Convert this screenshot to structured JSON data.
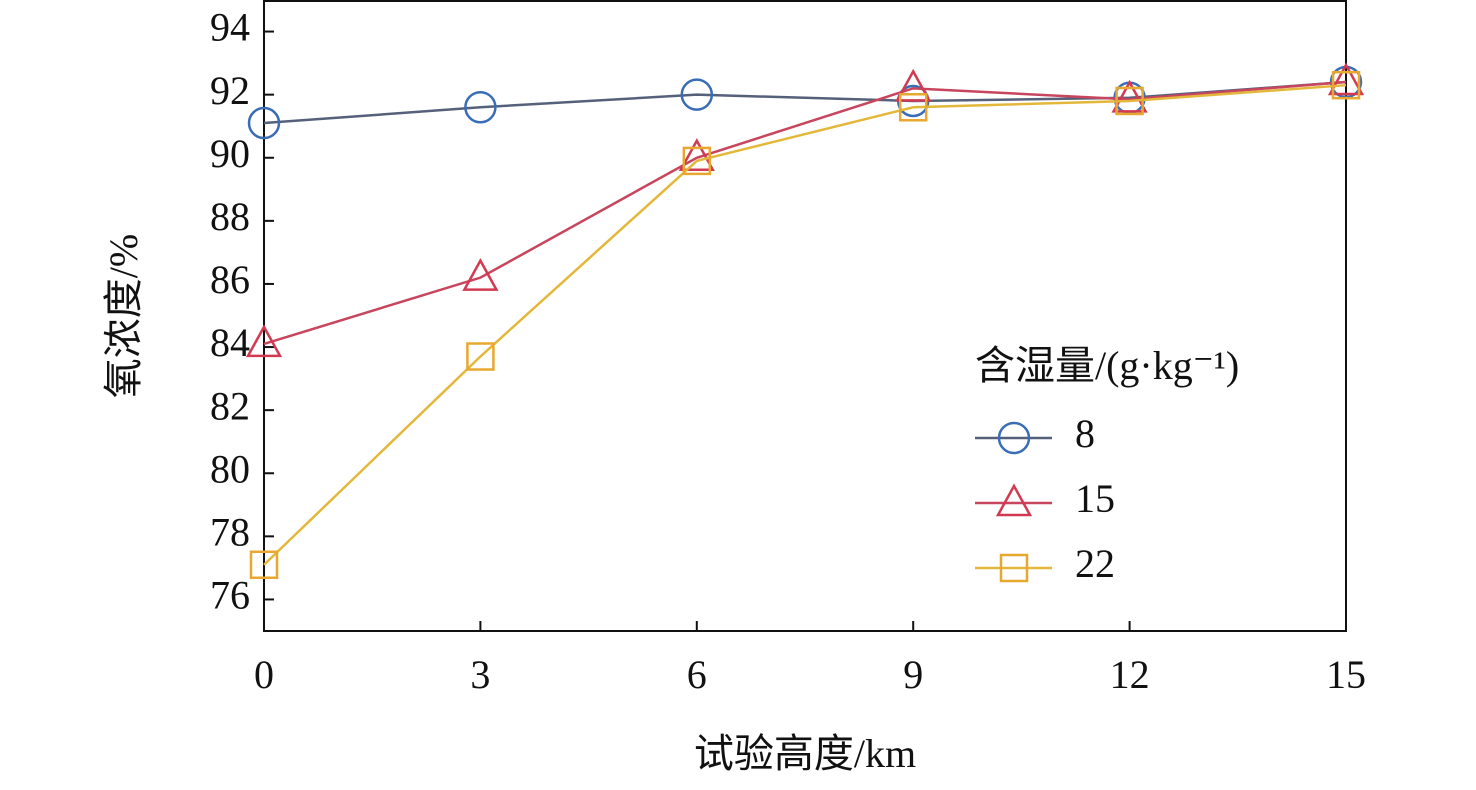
{
  "chart_data": {
    "type": "line",
    "x_label": "试验高度/km",
    "y_label": "氧浓度/%",
    "legend_title": "含湿量/(g·kg⁻¹)",
    "x": [
      0,
      3,
      6,
      9,
      12,
      15
    ],
    "series": [
      {
        "name": "8",
        "color": "#3a6db5",
        "line_color": "#55607a",
        "marker": "circle",
        "values": [
          91.1,
          91.6,
          92.0,
          91.8,
          91.9,
          92.4
        ]
      },
      {
        "name": "15",
        "color": "#d23a52",
        "line_color": "#c8455e",
        "marker": "triangle",
        "values": [
          84.1,
          86.2,
          90.0,
          92.2,
          91.85,
          92.4
        ]
      },
      {
        "name": "22",
        "color": "#e8a830",
        "line_color": "#e3b83a",
        "marker": "square",
        "values": [
          77.1,
          83.7,
          89.9,
          91.6,
          91.8,
          92.3
        ]
      }
    ],
    "xlim": [
      0,
      15
    ],
    "xticks": [
      0,
      3,
      6,
      9,
      12,
      15
    ],
    "ylim": [
      75,
      95
    ],
    "yticks": [
      76,
      78,
      80,
      82,
      84,
      86,
      88,
      90,
      92,
      94
    ]
  }
}
